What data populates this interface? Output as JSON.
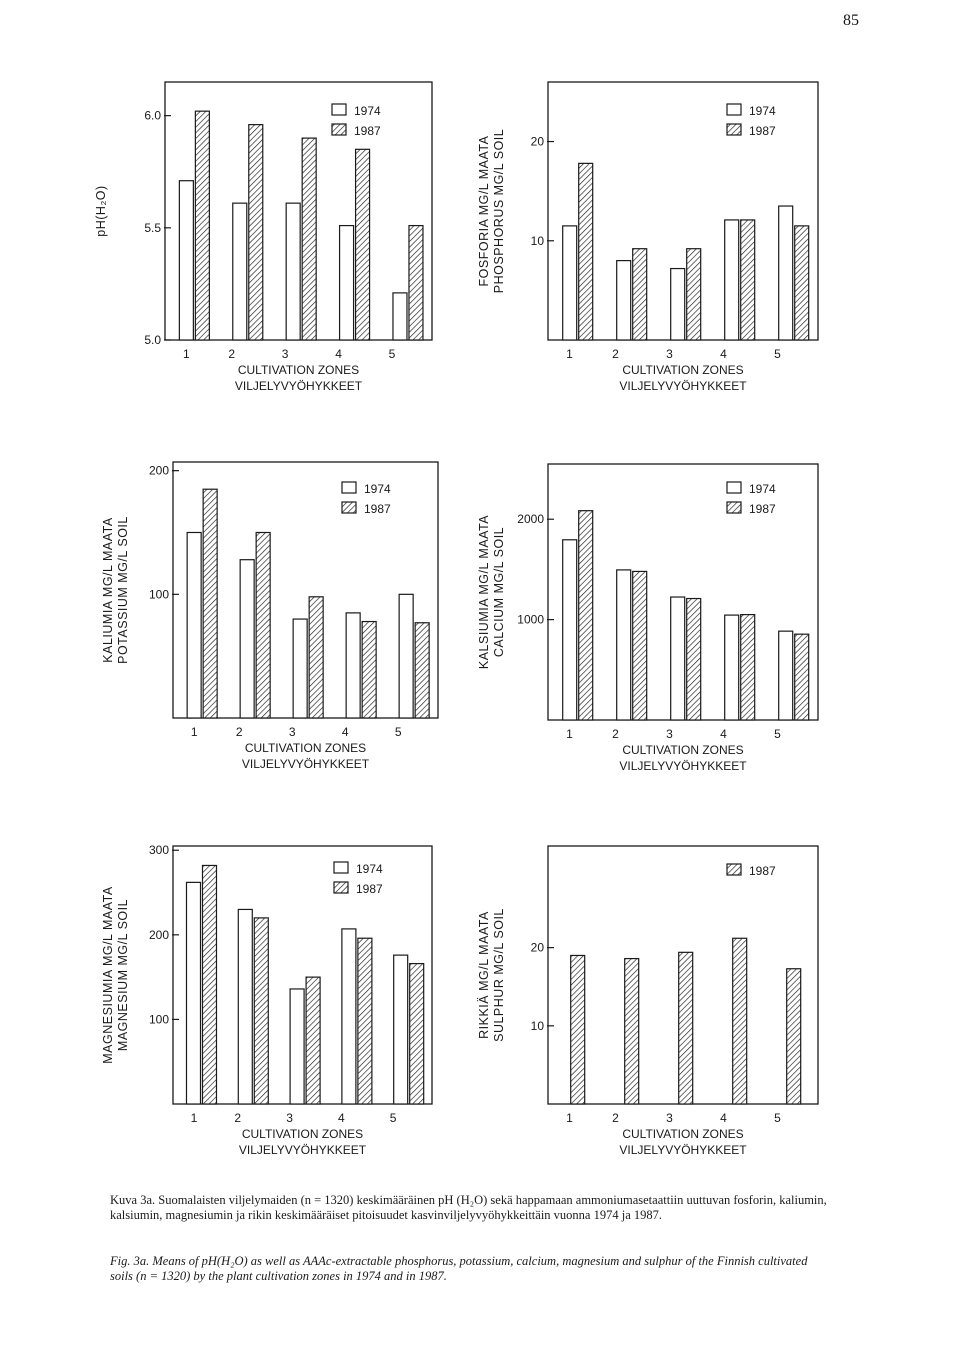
{
  "page_number": "85",
  "legend": {
    "y1974": "1974",
    "y1987": "1987"
  },
  "x_axis": {
    "ticks": [
      "1",
      "2",
      "3",
      "4",
      "5"
    ],
    "label_en": "CULTIVATION  ZONES",
    "label_fi": "VILJELYVYÖHYKKEET"
  },
  "caption": {
    "fi": "Kuva 3a. Suomalaisten viljelymaiden (n = 1320) keskimääräinen pH (H₂O) sekä happamaan ammoniumasetaattiin uuttuvan fosforin, kaliumin, kalsiumin, magnesiumin ja rikin keskimääräiset pitoisuudet kasvinviljelyvyöhykkeittäin vuonna 1974 ja 1987.",
    "en": "Fig. 3a. Means of pH(H₂O) as well as AAAc-extractable phosphorus, potassium, calcium, magnesium and sulphur of the Finnish cultivated soils (n = 1320) by the plant cultivation zones in 1974 and in 1987."
  },
  "chart_data": [
    {
      "id": "ph",
      "type": "bar",
      "ylabel": [
        "pH(H₂O)"
      ],
      "yticks": [
        "5.0",
        "5.5",
        "6.0"
      ],
      "ytick_values": [
        5.0,
        5.5,
        6.0
      ],
      "ylim": [
        5.0,
        6.15
      ],
      "categories": [
        "1",
        "2",
        "3",
        "4",
        "5"
      ],
      "series": [
        {
          "name": "1974",
          "values": [
            5.71,
            5.61,
            5.61,
            5.51,
            5.21
          ]
        },
        {
          "name": "1987",
          "values": [
            6.02,
            5.96,
            5.9,
            5.85,
            5.51
          ]
        }
      ]
    },
    {
      "id": "phosphorus",
      "type": "bar",
      "ylabel": [
        "FOSFORIA MG/L MAATA",
        "PHOSPHORUS MG/L SOIL"
      ],
      "yticks": [
        "10",
        "20"
      ],
      "ytick_values": [
        10,
        20
      ],
      "ylim": [
        0,
        26
      ],
      "categories": [
        "1",
        "2",
        "3",
        "4",
        "5"
      ],
      "series": [
        {
          "name": "1974",
          "values": [
            11.5,
            8,
            7.2,
            12.1,
            13.5
          ]
        },
        {
          "name": "1987",
          "values": [
            17.8,
            9.2,
            9.2,
            12.1,
            11.5
          ]
        }
      ]
    },
    {
      "id": "potassium",
      "type": "bar",
      "ylabel": [
        "KALIUMIA MG/L MAATA",
        "POTASSIUM MG/L SOIL"
      ],
      "yticks": [
        "100",
        "200"
      ],
      "ytick_values": [
        100,
        200
      ],
      "ylim": [
        0,
        207
      ],
      "categories": [
        "1",
        "2",
        "3",
        "4",
        "5"
      ],
      "series": [
        {
          "name": "1974",
          "values": [
            150,
            128,
            80,
            85,
            100
          ]
        },
        {
          "name": "1987",
          "values": [
            185,
            150,
            98,
            78,
            77
          ]
        }
      ]
    },
    {
      "id": "calcium",
      "type": "bar",
      "ylabel": [
        "KALSIUMIA MG/L MAATA",
        "CALCIUM MG/L SOIL"
      ],
      "yticks": [
        "1000",
        "2000"
      ],
      "ytick_values": [
        1000,
        2000
      ],
      "ylim": [
        0,
        2550
      ],
      "categories": [
        "1",
        "2",
        "3",
        "4",
        "5"
      ],
      "series": [
        {
          "name": "1974",
          "values": [
            1795,
            1495,
            1225,
            1045,
            885
          ]
        },
        {
          "name": "1987",
          "values": [
            2085,
            1480,
            1210,
            1050,
            855
          ]
        }
      ]
    },
    {
      "id": "magnesium",
      "type": "bar",
      "ylabel": [
        "MAGNESIUMIA MG/L MAATA",
        "MAGNESIUM MG/L SOIL"
      ],
      "yticks": [
        "100",
        "200",
        "300"
      ],
      "ytick_values": [
        100,
        200,
        300
      ],
      "ylim": [
        0,
        305
      ],
      "categories": [
        "1",
        "2",
        "3",
        "4",
        "5"
      ],
      "series": [
        {
          "name": "1974",
          "values": [
            262,
            230,
            136,
            207,
            176
          ]
        },
        {
          "name": "1987",
          "values": [
            282,
            220,
            150,
            196,
            166
          ]
        }
      ]
    },
    {
      "id": "sulphur",
      "type": "bar",
      "ylabel": [
        "RIKKIÄ MG/L MAATA",
        "SULPHUR MG/L SOIL"
      ],
      "yticks": [
        "10",
        "20"
      ],
      "ytick_values": [
        10,
        20
      ],
      "ylim": [
        0,
        33
      ],
      "categories": [
        "1",
        "2",
        "3",
        "4",
        "5"
      ],
      "series": [
        {
          "name": "1987",
          "values": [
            19.0,
            18.6,
            19.4,
            21.2,
            17.3
          ]
        }
      ]
    }
  ]
}
